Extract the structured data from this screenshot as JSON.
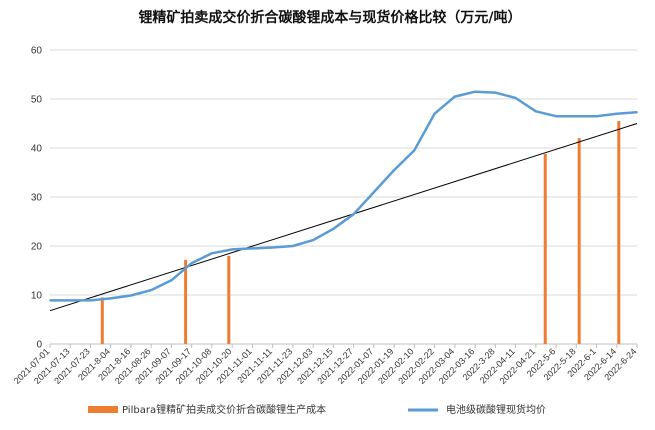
{
  "chart_data": {
    "type": "bar+line",
    "title": "锂精矿拍卖成交价折合碳酸锂成本与现货价格比较（万元/吨）",
    "categories": [
      "2021-07-01",
      "2021-07-13",
      "2021-07-23",
      "2021-8-04",
      "2021-8-16",
      "2021-08-26",
      "2021-09-07",
      "2021-09-17",
      "2021-10-08",
      "2021-10-20",
      "2021-11-01",
      "2021-11-11",
      "2021-11-23",
      "2021-12-03",
      "2021-12-15",
      "2021-12-27",
      "2022-01-07",
      "2022-01-19",
      "2022-02-10",
      "2022-02-22",
      "2022-03-04",
      "2022-03-16",
      "2022-3-28",
      "2022-04-11",
      "2022-04-21",
      "2022-5-6",
      "2022-5-18",
      "2022-6-1",
      "2022-6-14",
      "2022-6-24"
    ],
    "ylim": [
      0,
      60
    ],
    "yticks": [
      0,
      10,
      20,
      30,
      40,
      50,
      60
    ],
    "grid": true,
    "legend_position": "bottom",
    "series": [
      {
        "name": "Pilbara锂精矿拍卖成交价折合碳酸锂生产成本",
        "type": "bar",
        "color": "#ED7D31",
        "points": [
          {
            "x": "2021-7-30",
            "y": 9.5
          },
          {
            "x": "2021-9-14",
            "y": 17.2
          },
          {
            "x": "2021-10-18",
            "y": 18.0
          },
          {
            "x": "2022-4-28",
            "y": 38.8
          },
          {
            "x": "2022-5-20",
            "y": 42.0
          },
          {
            "x": "2022-6-15",
            "y": 45.5
          }
        ]
      },
      {
        "name": "电池级碳酸锂现货均价",
        "type": "line",
        "color": "#5B9BD5",
        "points": [
          {
            "x": "2021-07-01",
            "y": 8.9
          },
          {
            "x": "2021-07-13",
            "y": 8.9
          },
          {
            "x": "2021-07-23",
            "y": 8.9
          },
          {
            "x": "2021-8-04",
            "y": 9.3
          },
          {
            "x": "2021-8-16",
            "y": 9.9
          },
          {
            "x": "2021-08-26",
            "y": 11.0
          },
          {
            "x": "2021-09-07",
            "y": 13.0
          },
          {
            "x": "2021-09-17",
            "y": 16.5
          },
          {
            "x": "2021-10-08",
            "y": 18.5
          },
          {
            "x": "2021-10-20",
            "y": 19.3
          },
          {
            "x": "2021-11-01",
            "y": 19.5
          },
          {
            "x": "2021-11-11",
            "y": 19.7
          },
          {
            "x": "2021-11-23",
            "y": 20.0
          },
          {
            "x": "2021-12-03",
            "y": 21.2
          },
          {
            "x": "2021-12-15",
            "y": 23.5
          },
          {
            "x": "2021-12-27",
            "y": 26.5
          },
          {
            "x": "2022-01-07",
            "y": 31.0
          },
          {
            "x": "2022-01-19",
            "y": 35.5
          },
          {
            "x": "2022-02-10",
            "y": 39.5
          },
          {
            "x": "2022-02-22",
            "y": 47.0
          },
          {
            "x": "2022-03-04",
            "y": 50.5
          },
          {
            "x": "2022-03-16",
            "y": 51.5
          },
          {
            "x": "2022-3-28",
            "y": 51.3
          },
          {
            "x": "2022-04-11",
            "y": 50.2
          },
          {
            "x": "2022-04-21",
            "y": 47.5
          },
          {
            "x": "2022-5-6",
            "y": 46.5
          },
          {
            "x": "2022-5-18",
            "y": 46.5
          },
          {
            "x": "2022-6-1",
            "y": 46.5
          },
          {
            "x": "2022-6-14",
            "y": 47.0
          },
          {
            "x": "2022-6-24",
            "y": 47.3
          }
        ]
      },
      {
        "type": "trendline",
        "color": "#000000",
        "points": [
          {
            "x": "2021-07-01",
            "y": 6.8
          },
          {
            "x": "2022-6-24",
            "y": 45.0
          }
        ]
      }
    ]
  }
}
